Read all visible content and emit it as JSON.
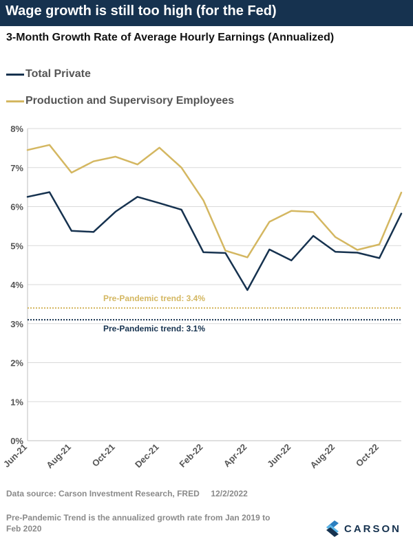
{
  "header": {
    "title": "Wage growth is still too high (for the Fed)"
  },
  "colors": {
    "header_bg": "#16324f",
    "total_private": "#16324f",
    "production": "#d4b761",
    "grid": "#d9d9d9"
  },
  "chart_data": {
    "type": "line",
    "title": "3-Month Growth Rate of Average Hourly Earnings (Annualized)",
    "xlabel": "",
    "ylabel": "",
    "x": [
      "Jun-21",
      "Jul-21",
      "Aug-21",
      "Sep-21",
      "Oct-21",
      "Nov-21",
      "Dec-21",
      "Jan-22",
      "Feb-22",
      "Mar-22",
      "Apr-22",
      "May-22",
      "Jun-22",
      "Jul-22",
      "Aug-22",
      "Sep-22",
      "Oct-22",
      "Nov-22"
    ],
    "x_tick_labels": [
      "Jun-21",
      "Aug-21",
      "Oct-21",
      "Dec-21",
      "Feb-22",
      "Apr-22",
      "Jun-22",
      "Aug-22",
      "Oct-22"
    ],
    "ylim": [
      0,
      8
    ],
    "y_ticks": [
      "0%",
      "1%",
      "2%",
      "3%",
      "4%",
      "5%",
      "6%",
      "7%",
      "8%"
    ],
    "grid": "horizontal",
    "legend": "top-left",
    "series": [
      {
        "name": "Total Private",
        "color": "#16324f",
        "values": [
          6.25,
          6.37,
          5.38,
          5.35,
          5.87,
          6.25,
          6.09,
          5.92,
          4.83,
          4.81,
          3.86,
          4.9,
          4.62,
          5.25,
          4.84,
          4.82,
          4.68,
          5.82
        ]
      },
      {
        "name": "Production and Supervisory Employees",
        "color": "#d4b761",
        "values": [
          7.45,
          7.58,
          6.87,
          7.16,
          7.28,
          7.08,
          7.51,
          7.0,
          6.16,
          4.87,
          4.7,
          5.61,
          5.89,
          5.86,
          5.22,
          4.89,
          5.03,
          6.36
        ]
      }
    ],
    "reference_lines": [
      {
        "label": "Pre-Pandemic trend: 3.4%",
        "value": 3.4,
        "color": "#d4b761",
        "style": "dotted"
      },
      {
        "label": "Pre-Pandemic trend: 3.1%",
        "value": 3.1,
        "color": "#16324f",
        "style": "dotted"
      }
    ]
  },
  "footer": {
    "source": "Data source: Carson Investment Research, FRED     12/2/2022",
    "note": "Pre-Pandemic Trend is the annualized growth rate from Jan 2019 to Feb 2020"
  },
  "logo": {
    "text": "CARSON",
    "icon": "carson-chevron-icon"
  }
}
